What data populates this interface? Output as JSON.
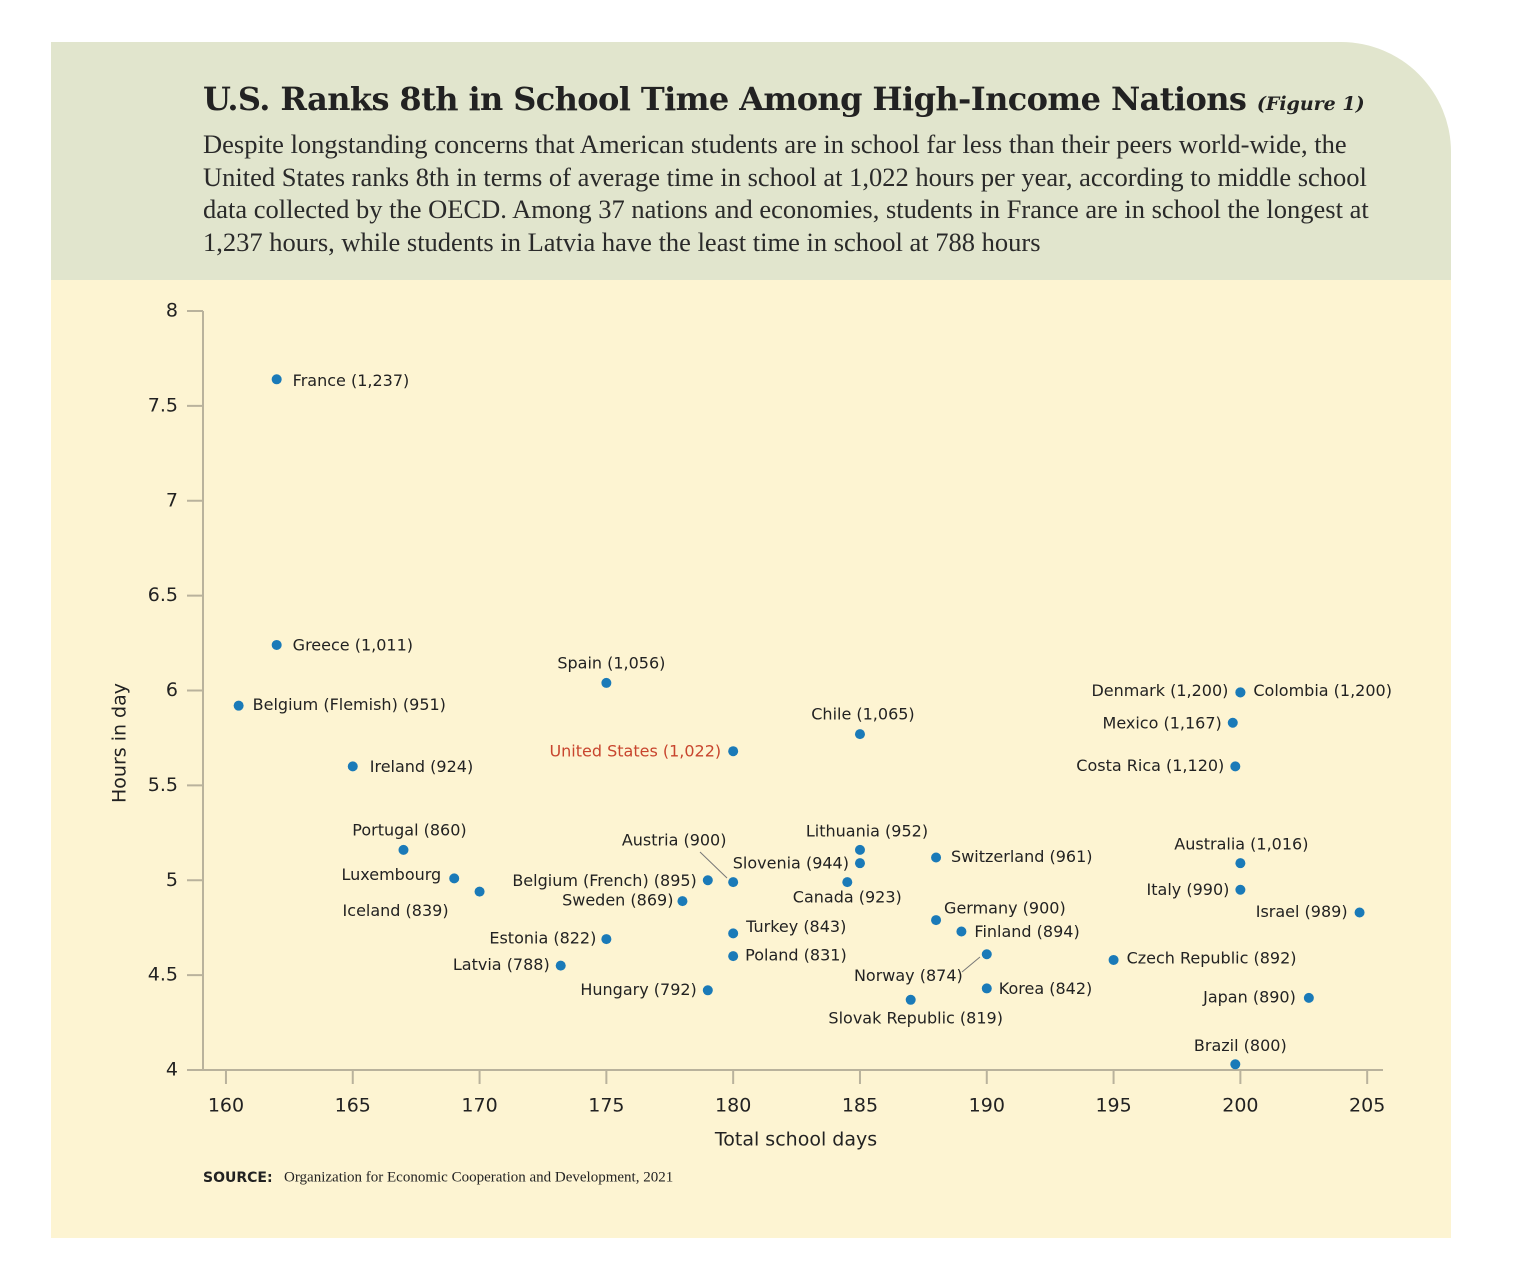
{
  "chart_data": {
    "type": "scatter",
    "title": "U.S. Ranks 8th in School Time Among High-Income Nations",
    "figure_note": "(Figure 1)",
    "subtitle": "Despite longstanding concerns that American students are in school far less than their peers world-wide, the United States ranks 8th in terms of average time in school at 1,022 hours per year, according to middle school data collected by the OECD. Among 37 nations and economies, students in France are in school the longest at 1,237 hours, while students in Latvia have the least time in school at 788 hours",
    "x_label": "Total school days",
    "y_label": "Hours in day",
    "source_label": "SOURCE:",
    "source": "Organization for Economic Cooperation and Development, 2021",
    "color": "#1a7ab8",
    "highlight_index": 8,
    "highlight_color": "#c8452e",
    "xlim": [
      159,
      205.6
    ],
    "ylim": [
      4,
      8
    ],
    "xticks": [
      160,
      165,
      170,
      175,
      180,
      185,
      190,
      195,
      200,
      205
    ],
    "yticks": [
      4,
      4.5,
      5,
      5.5,
      6,
      6.5,
      7,
      7.5,
      8
    ],
    "point_labels": [
      "France (1,237)",
      "Greece (1,011)",
      "Belgium (Flemish) (951)",
      "Ireland (924)",
      "Portugal (860)",
      "Luxembourg",
      "Iceland (839)",
      "Spain (1,056)",
      "United States (1,022)",
      "Belgium (French) (895)",
      "Austria (900)",
      "Sweden (869)",
      "Estonia (822)",
      "Latvia (788)",
      "Hungary (792)",
      "Turkey (843)",
      "Poland (831)",
      "Chile (1,065)",
      "Lithuania (952)",
      "Slovenia (944)",
      "Canada (923)",
      "Switzerland (961)",
      "Germany (900)",
      "Finland (894)",
      "Norway (874)",
      "Korea (842)",
      "Slovak Republic (819)",
      "Czech Republic (892)",
      "Denmark (1,200)",
      "Colombia (1,200)",
      "Mexico (1,167)",
      "Costa Rica (1,120)",
      "Australia (1,016)",
      "Italy (990)",
      "Israel (989)",
      "Japan (890)",
      "Brazil (800)"
    ],
    "x": [
      162,
      162,
      160.5,
      165,
      167,
      169,
      170,
      175,
      180,
      179,
      180,
      178,
      175,
      173.2,
      179,
      180,
      180,
      185,
      185,
      185,
      184.5,
      188,
      188,
      189,
      190,
      190,
      187,
      195,
      200,
      200,
      199.7,
      199.8,
      200,
      200,
      204.7,
      202.7,
      199.8
    ],
    "values": [
      7.64,
      6.24,
      5.92,
      5.6,
      5.16,
      5.01,
      4.94,
      6.04,
      5.68,
      5.0,
      4.99,
      4.89,
      4.69,
      4.55,
      4.42,
      4.72,
      4.6,
      5.77,
      5.16,
      5.09,
      4.99,
      5.12,
      4.79,
      4.73,
      4.61,
      4.43,
      4.37,
      4.58,
      5.99,
      5.99,
      5.83,
      5.6,
      5.09,
      4.95,
      4.83,
      4.38,
      4.03
    ]
  }
}
